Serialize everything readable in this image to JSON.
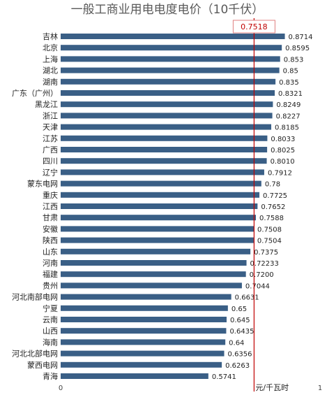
{
  "chart_data": {
    "type": "bar",
    "orientation": "horizontal",
    "title": "一般工商业用电电度电价（10千伏）",
    "categories": [
      "吉林",
      "北京",
      "上海",
      "湖北",
      "湖南",
      "广东（广州）",
      "黑龙江",
      "浙江",
      "天津",
      "江苏",
      "广西",
      "四川",
      "辽宁",
      "蒙东电网",
      "重庆",
      "江西",
      "甘肃",
      "安徽",
      "陕西",
      "山东",
      "河南",
      "福建",
      "贵州",
      "河北南部电网",
      "宁夏",
      "云南",
      "山西",
      "海南",
      "河北北部电网",
      "蒙西电网",
      "青海"
    ],
    "values": [
      0.8714,
      0.8595,
      0.853,
      0.85,
      0.835,
      0.8321,
      0.8249,
      0.8227,
      0.8185,
      0.8033,
      0.8025,
      0.801,
      0.7912,
      0.78,
      0.7725,
      0.7652,
      0.7588,
      0.7508,
      0.7504,
      0.7375,
      0.72233,
      0.72,
      0.7044,
      0.6631,
      0.65,
      0.645,
      0.6435,
      0.64,
      0.6356,
      0.6263,
      0.5741
    ],
    "value_labels": [
      "0.8714",
      "0.8595",
      "0.853",
      "0.85",
      "0.835",
      "0.8321",
      "0.8249",
      "0.8227",
      "0.8185",
      "0.8033",
      "0.8025",
      "0.8010",
      "0.7912",
      "0.78",
      "0.7725",
      "0.7652",
      "0.7588",
      "0.7508",
      "0.7504",
      "0.7375",
      "0.72233",
      "0.7200",
      "0.7044",
      "0.6631",
      "0.65",
      "0.645",
      "0.6435",
      "0.64",
      "0.6356",
      "0.6263",
      "0.5741"
    ],
    "xlim": [
      0,
      1
    ],
    "x_ticks": [
      "0",
      "1"
    ],
    "unit_label": "元/千瓦时",
    "reference_line": {
      "value": 0.7518,
      "label": "0.7518"
    },
    "grid": false,
    "colors": {
      "bar": "#3a5f86",
      "reference": "#c00000",
      "reference_box_border": "#e08080"
    }
  }
}
